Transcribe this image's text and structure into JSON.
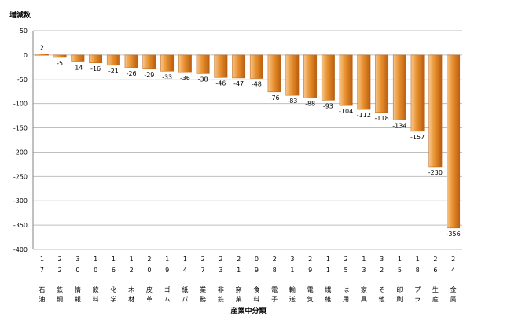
{
  "chart_data": {
    "type": "bar",
    "title": "",
    "ylabel": "増減数",
    "xlabel": "産業中分類",
    "ylim": [
      -400,
      50
    ],
    "yticks": [
      50,
      0,
      -50,
      -100,
      -150,
      -200,
      -250,
      -300,
      -350,
      -400
    ],
    "grid": true,
    "legend": "none",
    "categories": [
      {
        "code": [
          "1",
          "7"
        ],
        "name": [
          "石",
          "油"
        ]
      },
      {
        "code": [
          "2",
          "2"
        ],
        "name": [
          "鉄",
          "鋼"
        ]
      },
      {
        "code": [
          "3",
          "0"
        ],
        "name": [
          "情",
          "報"
        ]
      },
      {
        "code": [
          "1",
          "0"
        ],
        "name": [
          "飲",
          "料"
        ]
      },
      {
        "code": [
          "1",
          "6"
        ],
        "name": [
          "化",
          "学"
        ]
      },
      {
        "code": [
          "1",
          "2"
        ],
        "name": [
          "木",
          "材"
        ]
      },
      {
        "code": [
          "2",
          "0"
        ],
        "name": [
          "皮",
          "革"
        ]
      },
      {
        "code": [
          "1",
          "9"
        ],
        "name": [
          "ゴ",
          "ム"
        ]
      },
      {
        "code": [
          "1",
          "4"
        ],
        "name": [
          "紙",
          "パ"
        ]
      },
      {
        "code": [
          "2",
          "7"
        ],
        "name": [
          "業",
          "務"
        ]
      },
      {
        "code": [
          "2",
          "3"
        ],
        "name": [
          "非",
          "鉄"
        ]
      },
      {
        "code": [
          "2",
          "1"
        ],
        "name": [
          "窯",
          "業"
        ]
      },
      {
        "code": [
          "0",
          "9"
        ],
        "name": [
          "食",
          "料"
        ]
      },
      {
        "code": [
          "2",
          "8"
        ],
        "name": [
          "電",
          "子"
        ]
      },
      {
        "code": [
          "3",
          "1"
        ],
        "name": [
          "輸",
          "送"
        ]
      },
      {
        "code": [
          "2",
          "9"
        ],
        "name": [
          "電",
          "気"
        ]
      },
      {
        "code": [
          "1",
          "1"
        ],
        "name": [
          "繊",
          "維"
        ]
      },
      {
        "code": [
          "2",
          "5"
        ],
        "name": [
          "は",
          "用"
        ]
      },
      {
        "code": [
          "1",
          "3"
        ],
        "name": [
          "家",
          "具"
        ]
      },
      {
        "code": [
          "3",
          "2"
        ],
        "name": [
          "そ",
          "他"
        ]
      },
      {
        "code": [
          "1",
          "5"
        ],
        "name": [
          "印",
          "刷"
        ]
      },
      {
        "code": [
          "1",
          "8"
        ],
        "name": [
          "プ",
          "ラ"
        ]
      },
      {
        "code": [
          "2",
          "6"
        ],
        "name": [
          "生",
          "産"
        ]
      },
      {
        "code": [
          "2",
          "4"
        ],
        "name": [
          "金",
          "属"
        ]
      }
    ],
    "values": [
      2,
      -5,
      -14,
      -16,
      -21,
      -26,
      -29,
      -33,
      -36,
      -38,
      -46,
      -47,
      -48,
      -76,
      -83,
      -88,
      -93,
      -104,
      -112,
      -118,
      -134,
      -157,
      -230,
      -356
    ],
    "colors": {
      "bar_light": "#f7c68a",
      "bar_mid": "#e8902e",
      "bar_dark": "#b85e10",
      "grid": "#bfbfbf",
      "axis": "#808080"
    }
  }
}
